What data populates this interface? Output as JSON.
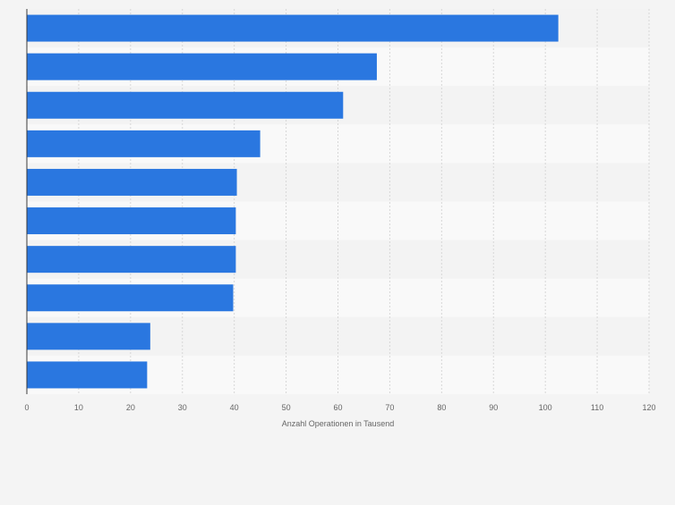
{
  "chart_data": {
    "type": "bar",
    "orientation": "horizontal",
    "categories": [
      "",
      "",
      "",
      "",
      "",
      "",
      "",
      "",
      "",
      ""
    ],
    "values": [
      102.5,
      67.5,
      61,
      45,
      40.5,
      40.3,
      40.3,
      39.8,
      23.8,
      23.2
    ],
    "xlabel": "Anzahl Operationen in Tausend",
    "xlim": [
      0,
      120
    ],
    "xticks": [
      0,
      10,
      20,
      30,
      40,
      50,
      60,
      70,
      80,
      90,
      100,
      110,
      120
    ],
    "grid": true,
    "bar_color": "#2a77e0",
    "band_colors": [
      "#f3f3f3",
      "#f9f9f9"
    ],
    "gridline_color": "#d7d7d7",
    "axis_color": "#3a3a3a"
  }
}
